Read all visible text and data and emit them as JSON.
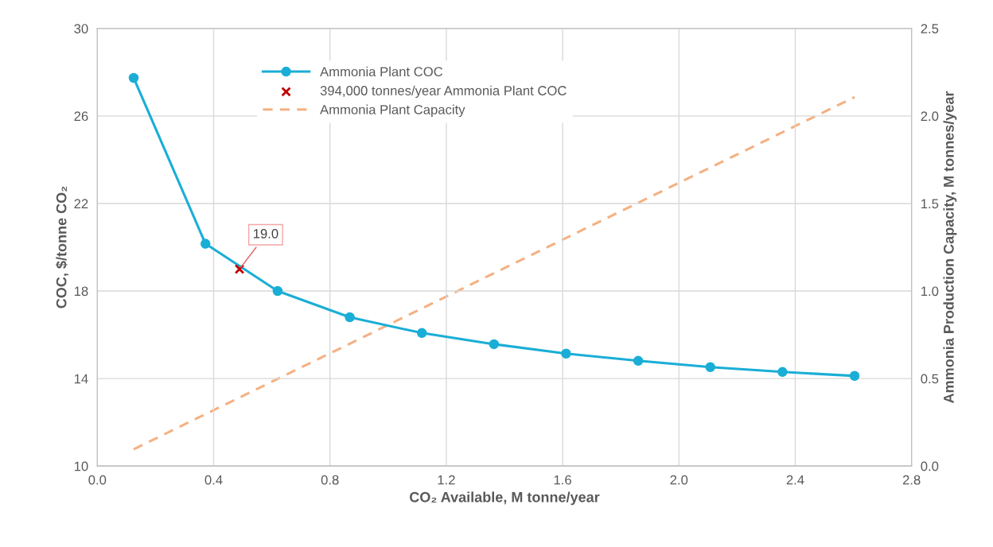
{
  "chart_data": {
    "type": "line",
    "xlabel": "CO₂ Available, M tonne/year",
    "ylabel": "COC, $/tonne CO₂",
    "y2label": "Ammonia Production Capacity, M tonnes/year",
    "xlim": [
      0.0,
      2.8
    ],
    "xticks": [
      {
        "value": 0,
        "label": "0.0"
      },
      0.4,
      0.8,
      1.2,
      1.6,
      {
        "value": 2,
        "label": "2.0"
      },
      2.4,
      2.8
    ],
    "ylim": [
      10,
      30
    ],
    "yticks": [
      10,
      14,
      18,
      22,
      26,
      30
    ],
    "y2lim": [
      0,
      2.5
    ],
    "y2ticks": [
      {
        "value": 0,
        "label": "0.0"
      },
      0.5,
      {
        "value": 1,
        "label": "1.0"
      },
      1.5,
      {
        "value": 2,
        "label": "2.0"
      },
      2.5
    ],
    "grid": true,
    "legend": "top",
    "series": [
      {
        "name": "Ammonia Plant COC",
        "color": "#1aaed6",
        "marker": "circle",
        "line_style": "solid",
        "x": [
          0.125,
          0.372,
          0.62,
          0.868,
          1.116,
          1.364,
          1.612,
          1.86,
          2.108,
          2.356,
          2.604
        ],
        "values": [
          27.74,
          20.16,
          18.0,
          16.8,
          16.08,
          15.57,
          15.14,
          14.81,
          14.52,
          14.3,
          14.12
        ]
      },
      {
        "name": "394,000 tonnes/year Ammonia Plant COC",
        "type": "scatter",
        "color": "#c00000",
        "marker": "cross",
        "x": [
          0.489
        ],
        "values": [
          19.0
        ]
      },
      {
        "name": "Ammonia Plant Capacity",
        "color": "#f4b183",
        "marker": "none",
        "line_style": "dashed",
        "axis": "y2",
        "x": [
          0.125,
          2.604
        ],
        "values": [
          0.096,
          2.108
        ]
      }
    ],
    "annotations": [
      {
        "text": "19.0",
        "x": 0.489,
        "y": 19.0
      }
    ]
  }
}
